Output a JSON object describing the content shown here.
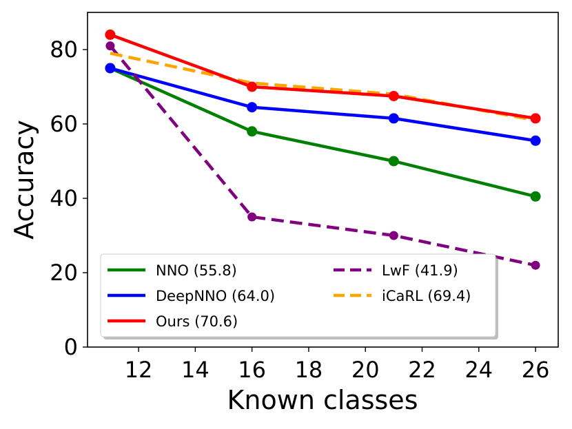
{
  "chart_data": {
    "type": "line",
    "title": "",
    "xlabel": "Known classes",
    "ylabel": "Accuracy",
    "xlim": [
      10.2,
      26.8
    ],
    "ylim": [
      0,
      90
    ],
    "xticks": [
      12,
      14,
      16,
      18,
      20,
      22,
      24,
      26
    ],
    "yticks": [
      0,
      20,
      40,
      60,
      80
    ],
    "grid": false,
    "legend_position": "lower-left",
    "x": [
      11,
      16,
      21,
      26
    ],
    "series": [
      {
        "name": "NNO",
        "label": "NNO (55.8)",
        "color": "#008000",
        "dash": false,
        "values": [
          75,
          58,
          50,
          40.5
        ]
      },
      {
        "name": "DeepNNO",
        "label": "DeepNNO (64.0)",
        "color": "#0000ff",
        "dash": false,
        "values": [
          75,
          64.5,
          61.5,
          55.5
        ]
      },
      {
        "name": "Ours",
        "label": "Ours (70.6)",
        "color": "#ff0000",
        "dash": false,
        "values": [
          84,
          70,
          67.5,
          61.5
        ]
      },
      {
        "name": "LwF",
        "label": "LwF (41.9)",
        "color": "#800080",
        "dash": true,
        "values": [
          81,
          35,
          30,
          22
        ]
      },
      {
        "name": "iCaRL",
        "label": "iCaRL (69.4)",
        "color": "#ffa500",
        "dash": true,
        "values": [
          79,
          71,
          68,
          61
        ]
      }
    ]
  }
}
